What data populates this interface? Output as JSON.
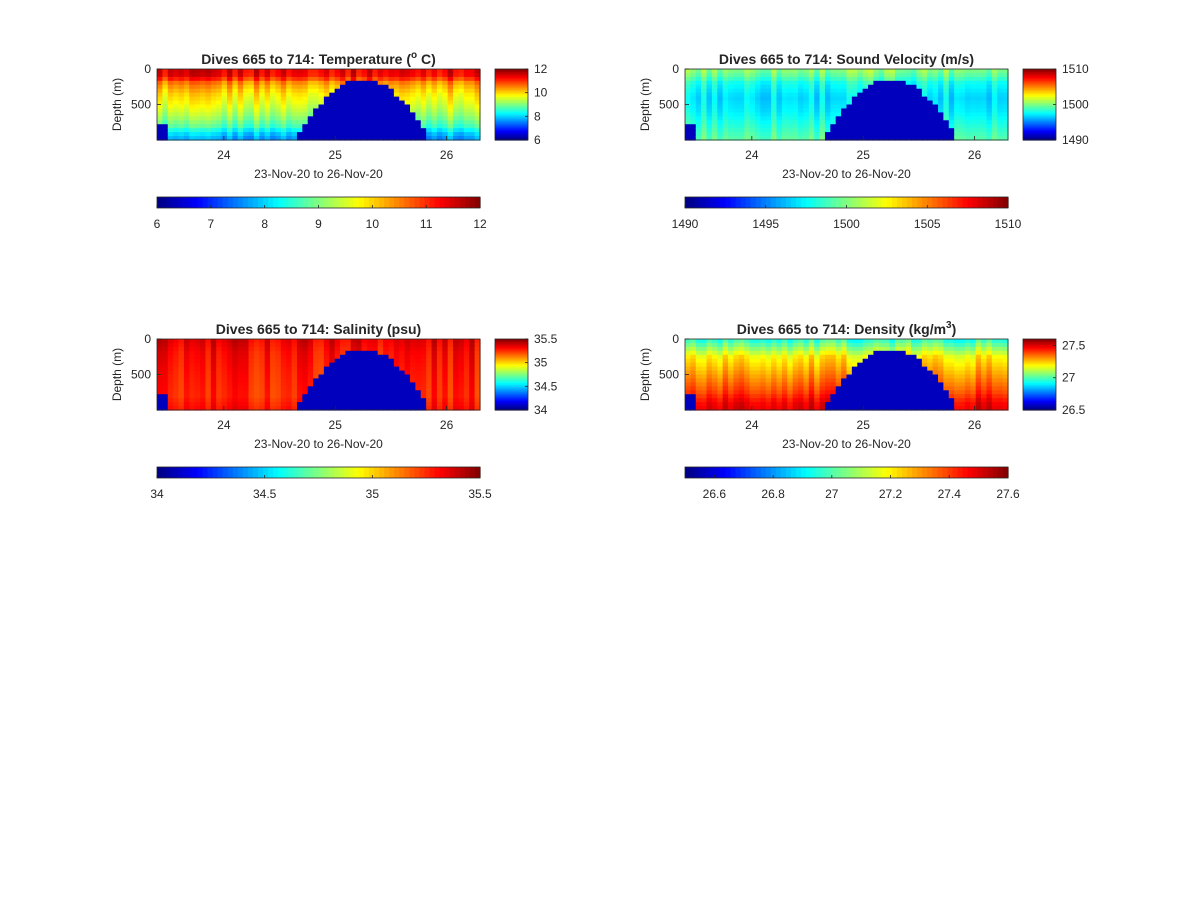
{
  "figure": {
    "background": "#ffffff",
    "panel_count": 4
  },
  "colormap": "jet",
  "chart_data": [
    {
      "type": "heatmap",
      "title": "Dives 665 to 714: Temperature (° C)",
      "title_main": "Dives 665 to 714: Temperature (",
      "title_sup": "o",
      "title_end": " C)",
      "xlabel": "23-Nov-20 to 26-Nov-20",
      "ylabel": "Depth (m)",
      "x_ticks": [
        "24",
        "25",
        "26"
      ],
      "x_tick_values": [
        24,
        25,
        26
      ],
      "xlim": [
        23.4,
        26.3
      ],
      "y_ticks": [
        "0",
        "500"
      ],
      "y_tick_values": [
        0,
        500
      ],
      "ylim": [
        0,
        1000
      ],
      "y_reversed": true,
      "vertical_profile": [
        {
          "depth": 0,
          "value": 11.4
        },
        {
          "depth": 100,
          "value": 11.3
        },
        {
          "depth": 200,
          "value": 10.4
        },
        {
          "depth": 350,
          "value": 9.9
        },
        {
          "depth": 500,
          "value": 9.6
        },
        {
          "depth": 650,
          "value": 9.2
        },
        {
          "depth": 800,
          "value": 8.7
        },
        {
          "depth": 900,
          "value": 8.0
        },
        {
          "depth": 1000,
          "value": 7.6
        }
      ],
      "colorbar_right": {
        "ticks": [
          "12",
          "10",
          "8",
          "6"
        ],
        "tick_values": [
          12,
          10,
          8,
          6
        ],
        "limits": [
          6,
          12
        ]
      },
      "colorbar_bottom": {
        "ticks": [
          "6",
          "7",
          "8",
          "9",
          "10",
          "11",
          "12"
        ],
        "tick_values": [
          6,
          7,
          8,
          9,
          10,
          11,
          12
        ],
        "limits": [
          6,
          12
        ]
      }
    },
    {
      "type": "heatmap",
      "title": "Dives 665 to 714: Sound Velocity (m/s)",
      "title_main": "Dives 665 to 714: Sound Velocity (m/s)",
      "title_sup": "",
      "title_end": "",
      "xlabel": "23-Nov-20 to 26-Nov-20",
      "ylabel": "Depth (m)",
      "x_ticks": [
        "24",
        "25",
        "26"
      ],
      "x_tick_values": [
        24,
        25,
        26
      ],
      "xlim": [
        23.4,
        26.3
      ],
      "y_ticks": [
        "0",
        "500"
      ],
      "y_tick_values": [
        0,
        500
      ],
      "ylim": [
        0,
        1000
      ],
      "y_reversed": true,
      "vertical_profile": [
        {
          "depth": 0,
          "value": 1500.5
        },
        {
          "depth": 100,
          "value": 1499.5
        },
        {
          "depth": 200,
          "value": 1498.0
        },
        {
          "depth": 400,
          "value": 1497.0
        },
        {
          "depth": 600,
          "value": 1497.5
        },
        {
          "depth": 800,
          "value": 1498.5
        },
        {
          "depth": 1000,
          "value": 1499.5
        }
      ],
      "colorbar_right": {
        "ticks": [
          "1510",
          "1500",
          "1490"
        ],
        "tick_values": [
          1510,
          1500,
          1490
        ],
        "limits": [
          1490,
          1510
        ]
      },
      "colorbar_bottom": {
        "ticks": [
          "1490",
          "1495",
          "1500",
          "1505",
          "1510"
        ],
        "tick_values": [
          1490,
          1495,
          1500,
          1505,
          1510
        ],
        "limits": [
          1490,
          1510
        ]
      }
    },
    {
      "type": "heatmap",
      "title": "Dives 665 to 714: Salinity (psu)",
      "title_main": "Dives 665 to 714: Salinity (psu)",
      "title_sup": "",
      "title_end": "",
      "xlabel": "23-Nov-20 to 26-Nov-20",
      "ylabel": "Depth (m)",
      "x_ticks": [
        "24",
        "25",
        "26"
      ],
      "x_tick_values": [
        24,
        25,
        26
      ],
      "xlim": [
        23.4,
        26.3
      ],
      "y_ticks": [
        "0",
        "500"
      ],
      "y_tick_values": [
        0,
        500
      ],
      "ylim": [
        0,
        1000
      ],
      "y_reversed": true,
      "vertical_profile": [
        {
          "depth": 0,
          "value": 35.35
        },
        {
          "depth": 200,
          "value": 35.3
        },
        {
          "depth": 500,
          "value": 35.27
        },
        {
          "depth": 800,
          "value": 35.25
        },
        {
          "depth": 1000,
          "value": 35.3
        }
      ],
      "colorbar_right": {
        "ticks": [
          "35.5",
          "35",
          "34.5",
          "34"
        ],
        "tick_values": [
          35.5,
          35,
          34.5,
          34
        ],
        "limits": [
          34,
          35.5
        ]
      },
      "colorbar_bottom": {
        "ticks": [
          "34",
          "34.5",
          "35",
          "35.5"
        ],
        "tick_values": [
          34,
          34.5,
          35,
          35.5
        ],
        "limits": [
          34,
          35.5
        ]
      }
    },
    {
      "type": "heatmap",
      "title": "Dives 665 to 714: Density (kg/m³)",
      "title_main": "Dives 665 to 714: Density (kg/m",
      "title_sup": "3",
      "title_end": ")",
      "xlabel": "23-Nov-20 to 26-Nov-20",
      "ylabel": "Depth (m)",
      "x_ticks": [
        "24",
        "25",
        "26"
      ],
      "x_tick_values": [
        24,
        25,
        26
      ],
      "xlim": [
        23.4,
        26.3
      ],
      "y_ticks": [
        "0",
        "500"
      ],
      "y_tick_values": [
        0,
        500
      ],
      "ylim": [
        0,
        1000
      ],
      "y_reversed": true,
      "vertical_profile": [
        {
          "depth": 0,
          "value": 26.95
        },
        {
          "depth": 100,
          "value": 27.05
        },
        {
          "depth": 250,
          "value": 27.2
        },
        {
          "depth": 500,
          "value": 27.3
        },
        {
          "depth": 750,
          "value": 27.4
        },
        {
          "depth": 900,
          "value": 27.48
        },
        {
          "depth": 1000,
          "value": 27.5
        }
      ],
      "colorbar_right": {
        "ticks": [
          "27.5",
          "27",
          "26.5"
        ],
        "tick_values": [
          27.5,
          27,
          26.5
        ],
        "limits": [
          26.5,
          27.6
        ]
      },
      "colorbar_bottom": {
        "ticks": [
          "26.6",
          "26.8",
          "27",
          "27.2",
          "27.4",
          "27.6"
        ],
        "tick_values": [
          26.6,
          26.8,
          27,
          27.2,
          27.4,
          27.6
        ],
        "limits": [
          26.5,
          27.6
        ]
      }
    }
  ]
}
